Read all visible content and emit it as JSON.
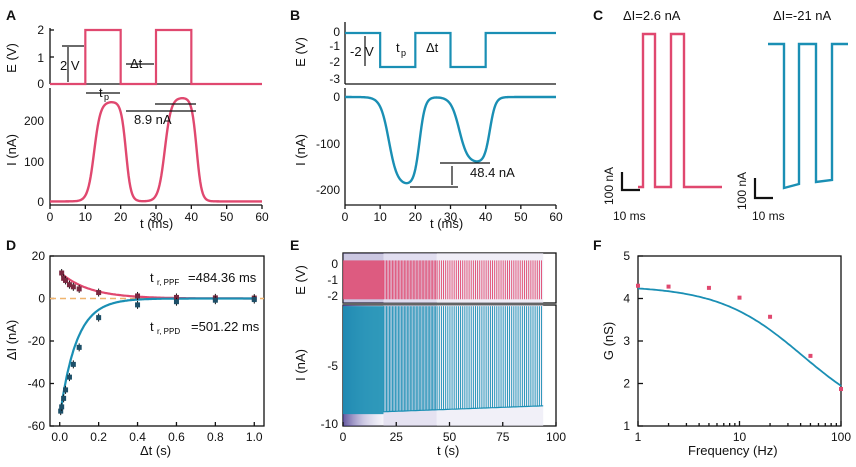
{
  "colors": {
    "pink": "#e0486f",
    "blue": "#1a8fb4",
    "orange_dash": "#f0b46e",
    "purple_dark": "#4a3b8f"
  },
  "chart_data": [
    {
      "panel": "A",
      "type": "line",
      "top": {
        "ylabel": "E (V)",
        "ylim": [
          0,
          2
        ],
        "yticks": [
          "0",
          "1",
          "2"
        ],
        "x": [
          0,
          10,
          10,
          20,
          20,
          30,
          30,
          40,
          40,
          60
        ],
        "y": [
          0,
          0,
          2,
          2,
          0,
          0,
          2,
          2,
          0,
          0
        ],
        "annotations": {
          "amplitude": "2 V",
          "pulse_width": "t",
          "pulse_width_sub": "p",
          "interval": "Δt"
        }
      },
      "bottom": {
        "xlabel": "t (ms)",
        "ylabel": "I (nA)",
        "xlim": [
          0,
          60
        ],
        "ylim": [
          0,
          240
        ],
        "xticks": [
          "0",
          "10",
          "20",
          "30",
          "40",
          "50",
          "60"
        ],
        "yticks": [
          "0",
          "100",
          "200"
        ],
        "series": [
          {
            "name": "current",
            "pulses": [
              [
                10,
                20
              ],
              [
                30,
                40
              ]
            ],
            "baseline": 8,
            "peaks": [
              230,
              239
            ]
          }
        ],
        "annotations": {
          "delta": "8.9 nA"
        }
      }
    },
    {
      "panel": "B",
      "type": "line",
      "top": {
        "ylabel": "E (V)",
        "ylim": [
          -3,
          0
        ],
        "yticks": [
          "0",
          "-1",
          "-2",
          "-3"
        ],
        "x": [
          0,
          10,
          10,
          20,
          20,
          30,
          30,
          40,
          40,
          60
        ],
        "y": [
          0,
          0,
          -2,
          -2,
          0,
          0,
          -2,
          -2,
          0,
          0
        ],
        "annotations": {
          "amplitude": "-2 V",
          "pulse_width": "t",
          "pulse_width_sub": "p",
          "interval": "Δt"
        }
      },
      "bottom": {
        "xlabel": "t (ms)",
        "ylabel": "I (nA)",
        "xlim": [
          0,
          60
        ],
        "ylim": [
          -215,
          0
        ],
        "xticks": [
          "0",
          "10",
          "20",
          "30",
          "40",
          "50",
          "60"
        ],
        "yticks": [
          "0",
          "-100",
          "-200"
        ],
        "series": [
          {
            "name": "current",
            "pulses": [
              [
                10,
                20
              ],
              [
                30,
                40
              ]
            ],
            "baseline": 0,
            "peaks": [
              -190,
              -142
            ]
          }
        ],
        "annotations": {
          "delta": "48.4 nA"
        }
      }
    },
    {
      "panel": "C",
      "type": "line",
      "subplots": [
        {
          "title": "ΔI=2.6 nA",
          "scale_y": "100 nA",
          "scale_x": "10 ms",
          "polarity": "positive"
        },
        {
          "title": "ΔI=-21 nA",
          "scale_y": "100 nA",
          "scale_x": "10 ms",
          "polarity": "negative"
        }
      ]
    },
    {
      "panel": "D",
      "type": "scatter",
      "xlabel": "Δt (s)",
      "ylabel": "ΔI (nA)",
      "xlim": [
        -0.05,
        1.05
      ],
      "ylim": [
        -60,
        20
      ],
      "xticks": [
        "0.0",
        "0.2",
        "0.4",
        "0.6",
        "0.8",
        "1.0"
      ],
      "yticks": [
        "20",
        "0",
        "-20",
        "-40",
        "-60"
      ],
      "series": [
        {
          "name": "PPF",
          "x": [
            0.01,
            0.02,
            0.03,
            0.05,
            0.07,
            0.1,
            0.2,
            0.4,
            0.6,
            0.8,
            1.0
          ],
          "y": [
            12,
            9.5,
            8.5,
            6.5,
            5.5,
            4.5,
            2.8,
            1.2,
            0.5,
            0.3,
            0.2
          ]
        },
        {
          "name": "PPD",
          "x": [
            0.005,
            0.01,
            0.02,
            0.03,
            0.05,
            0.07,
            0.1,
            0.2,
            0.4,
            0.6,
            0.8,
            1.0
          ],
          "y": [
            -53,
            -51,
            -47,
            -43,
            -37,
            -31,
            -23,
            -9,
            -3,
            -1.5,
            -0.8,
            -0.5
          ]
        }
      ],
      "annotations": {
        "ppf_label": "t",
        "ppf_sub": "r, PPF",
        "ppf_value": "=484.36 ms",
        "ppd_label": "t",
        "ppd_sub": "r, PPD",
        "ppd_value": "=501.22 ms"
      }
    },
    {
      "panel": "E",
      "type": "line",
      "top": {
        "ylabel": "E (V)",
        "ylim": [
          -2.2,
          0.5
        ],
        "yticks": [
          "0",
          "-1",
          "-2"
        ]
      },
      "bottom": {
        "xlabel": "t (s)",
        "ylabel": "I (nA)",
        "xlim": [
          0,
          100
        ],
        "ylim": [
          -10,
          0.2
        ],
        "xticks": [
          "0",
          "25",
          "50",
          "75",
          "100"
        ],
        "yticks": [
          "-5",
          "-10"
        ],
        "segments": [
          {
            "from": 0,
            "to": 4,
            "style": "dense"
          },
          {
            "from": 4,
            "to": 19,
            "style": "dense"
          },
          {
            "from": 19,
            "to": 44,
            "style": "spikes"
          },
          {
            "from": 44,
            "to": 94,
            "style": "sparse"
          }
        ],
        "baseline_levels": [
          -9.0,
          -8.7,
          -8.5,
          -8.3
        ]
      }
    },
    {
      "panel": "F",
      "type": "line",
      "xlabel": "Frequency (Hz)",
      "ylabel": "G (nS)",
      "xscale": "log",
      "xlim": [
        1,
        100
      ],
      "ylim": [
        1,
        5
      ],
      "xticks": [
        "1",
        "10",
        "100"
      ],
      "yticks": [
        "1",
        "2",
        "3",
        "4",
        "5"
      ],
      "series": [
        {
          "name": "measured",
          "x": [
            1,
            2,
            5,
            10,
            20,
            50,
            100
          ],
          "y": [
            4.3,
            4.28,
            4.25,
            4.02,
            3.57,
            2.65,
            1.87
          ]
        }
      ]
    }
  ]
}
